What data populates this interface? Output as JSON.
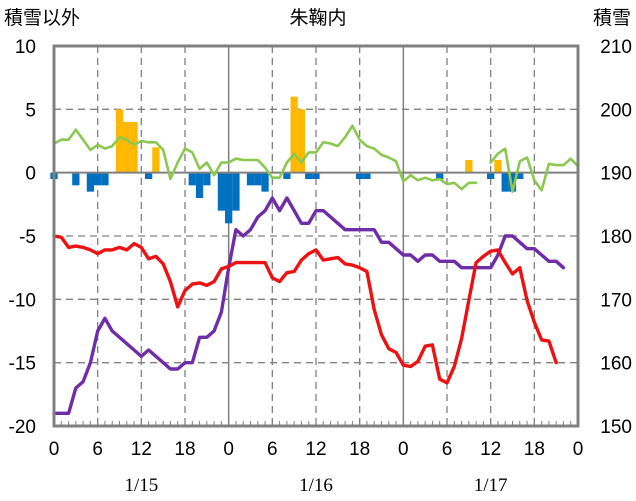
{
  "chart_data": {
    "type": "bar+line",
    "title": "朱鞠内",
    "ylabel_left": "積雪以外",
    "ylabel_right": "積雪",
    "ylim_left": [
      -20,
      10
    ],
    "ylim_right": [
      150,
      210
    ],
    "yticks_left": [
      "10",
      "5",
      "0",
      "-5",
      "-10",
      "-15",
      "-20"
    ],
    "yticks_right": [
      "210",
      "200",
      "190",
      "180",
      "170",
      "160",
      "150"
    ],
    "x_hours": [
      0,
      72
    ],
    "xticks": [
      "0",
      "6",
      "12",
      "18",
      "0",
      "6",
      "12",
      "18",
      "0",
      "6",
      "12",
      "18",
      "0"
    ],
    "dates": [
      "1/15",
      "1/16",
      "1/17"
    ],
    "grid": true,
    "colors": {
      "temperature": "#ee1111",
      "wind": "#8cc850",
      "snow_depth": "#6f2da8",
      "precipitation": "#ffb800",
      "snow_change": "#0070c0"
    },
    "series": [
      {
        "key": "precipitation",
        "type": "bar",
        "axis": "left",
        "values": [
          [
            9,
            5
          ],
          [
            10,
            4
          ],
          [
            11,
            4
          ],
          [
            14,
            2
          ],
          [
            33,
            6
          ],
          [
            34,
            5
          ],
          [
            57,
            1
          ],
          [
            61,
            1
          ]
        ]
      },
      {
        "key": "snow_change",
        "type": "bar",
        "axis": "left",
        "values": [
          [
            0,
            -0.5
          ],
          [
            3,
            -1
          ],
          [
            5,
            -1.5
          ],
          [
            6,
            -1
          ],
          [
            7,
            -1
          ],
          [
            13,
            -0.5
          ],
          [
            19,
            -1
          ],
          [
            20,
            -2
          ],
          [
            21,
            -1
          ],
          [
            23,
            -3
          ],
          [
            24,
            -4
          ],
          [
            25,
            -3
          ],
          [
            27,
            -1
          ],
          [
            28,
            -1
          ],
          [
            29,
            -1.5
          ],
          [
            32,
            -0.5
          ],
          [
            35,
            -0.5
          ],
          [
            36,
            -0.5
          ],
          [
            42,
            -0.5
          ],
          [
            43,
            -0.5
          ],
          [
            53,
            -0.5
          ],
          [
            60,
            -0.5
          ],
          [
            62,
            -1.5
          ],
          [
            63,
            -1.5
          ],
          [
            64,
            -0.5
          ]
        ]
      },
      {
        "key": "wind",
        "type": "line",
        "axis": "left",
        "segments": [
          [
            [
              0,
              2.3
            ],
            [
              1,
              2.6
            ],
            [
              2,
              2.6
            ],
            [
              3,
              3.4
            ],
            [
              4,
              2.6
            ],
            [
              5,
              1.8
            ],
            [
              6,
              2.2
            ],
            [
              7,
              1.9
            ],
            [
              8,
              2.1
            ],
            [
              9,
              2.8
            ],
            [
              10,
              2.6
            ],
            [
              11,
              2.2
            ],
            [
              12,
              2.5
            ],
            [
              13,
              2.4
            ],
            [
              14,
              2.4
            ],
            [
              15,
              1.8
            ],
            [
              16,
              -0.5
            ],
            [
              17,
              0.8
            ],
            [
              18,
              1.9
            ],
            [
              19,
              1.6
            ],
            [
              20,
              0.3
            ],
            [
              21,
              0.8
            ],
            [
              22,
              -0.2
            ],
            [
              23,
              0.8
            ],
            [
              24,
              0.8
            ],
            [
              25,
              1.1
            ],
            [
              26,
              1.0
            ],
            [
              27,
              1.0
            ],
            [
              28,
              1.0
            ],
            [
              29,
              0.4
            ],
            [
              30,
              -0.4
            ],
            [
              31,
              -0.4
            ],
            [
              32,
              0.8
            ],
            [
              33,
              1.5
            ],
            [
              34,
              0.8
            ],
            [
              35,
              1.6
            ],
            [
              36,
              1.6
            ],
            [
              37,
              2.4
            ],
            [
              38,
              2.3
            ],
            [
              39,
              2.1
            ],
            [
              40,
              2.8
            ],
            [
              41,
              3.7
            ],
            [
              42,
              2.6
            ],
            [
              43,
              2.1
            ],
            [
              44,
              1.9
            ],
            [
              45,
              1.4
            ],
            [
              46,
              1.2
            ],
            [
              47,
              0.9
            ],
            [
              48,
              -0.7
            ],
            [
              49,
              -0.2
            ],
            [
              50,
              -0.6
            ],
            [
              51,
              -0.4
            ],
            [
              52,
              -0.6
            ],
            [
              53,
              -0.5
            ],
            [
              54,
              -0.9
            ],
            [
              55,
              -0.8
            ],
            [
              56,
              -1.3
            ],
            [
              57,
              -0.8
            ],
            [
              58,
              -0.8
            ]
          ],
          [
            [
              60,
              0.8
            ],
            [
              61,
              1.5
            ],
            [
              62,
              1.9
            ],
            [
              63,
              -1.5
            ],
            [
              64,
              0.9
            ],
            [
              65,
              1.2
            ],
            [
              66,
              -0.6
            ],
            [
              67,
              -1.4
            ],
            [
              68,
              0.7
            ],
            [
              69,
              0.6
            ],
            [
              70,
              0.6
            ],
            [
              71,
              1.1
            ],
            [
              72,
              0.5
            ]
          ]
        ]
      },
      {
        "key": "temperature",
        "type": "line",
        "axis": "left",
        "points": [
          [
            0,
            -5.0
          ],
          [
            1,
            -5.1
          ],
          [
            2,
            -5.9
          ],
          [
            3,
            -5.8
          ],
          [
            4,
            -5.9
          ],
          [
            5,
            -6.1
          ],
          [
            6,
            -6.4
          ],
          [
            7,
            -6.1
          ],
          [
            8,
            -6.1
          ],
          [
            9,
            -5.9
          ],
          [
            10,
            -6.1
          ],
          [
            11,
            -5.6
          ],
          [
            12,
            -5.9
          ],
          [
            13,
            -6.8
          ],
          [
            14,
            -6.6
          ],
          [
            15,
            -7.2
          ],
          [
            16,
            -8.6
          ],
          [
            17,
            -10.6
          ],
          [
            18,
            -9.3
          ],
          [
            19,
            -8.8
          ],
          [
            20,
            -8.7
          ],
          [
            21,
            -8.9
          ],
          [
            22,
            -8.6
          ],
          [
            23,
            -7.6
          ],
          [
            24,
            -7.4
          ],
          [
            25,
            -7.1
          ],
          [
            26,
            -7.1
          ],
          [
            27,
            -7.1
          ],
          [
            28,
            -7.1
          ],
          [
            29,
            -7.1
          ],
          [
            30,
            -8.3
          ],
          [
            31,
            -8.6
          ],
          [
            32,
            -7.9
          ],
          [
            33,
            -7.8
          ],
          [
            34,
            -6.9
          ],
          [
            35,
            -6.4
          ],
          [
            36,
            -6.1
          ],
          [
            37,
            -6.9
          ],
          [
            38,
            -6.8
          ],
          [
            39,
            -6.7
          ],
          [
            40,
            -7.2
          ],
          [
            41,
            -7.3
          ],
          [
            42,
            -7.5
          ],
          [
            43,
            -7.8
          ],
          [
            44,
            -10.8
          ],
          [
            45,
            -12.8
          ],
          [
            46,
            -13.9
          ],
          [
            47,
            -14.2
          ],
          [
            48,
            -15.2
          ],
          [
            49,
            -15.3
          ],
          [
            50,
            -14.9
          ],
          [
            51,
            -13.7
          ],
          [
            52,
            -13.6
          ],
          [
            53,
            -16.3
          ],
          [
            54,
            -16.6
          ],
          [
            55,
            -15.3
          ],
          [
            56,
            -13.1
          ],
          [
            57,
            -10.1
          ],
          [
            58,
            -7.1
          ],
          [
            59,
            -6.6
          ],
          [
            60,
            -6.2
          ],
          [
            61,
            -6.1
          ],
          [
            62,
            -7.1
          ],
          [
            63,
            -8.0
          ],
          [
            64,
            -7.5
          ],
          [
            65,
            -10.1
          ],
          [
            66,
            -11.8
          ],
          [
            67,
            -13.2
          ],
          [
            68,
            -13.3
          ],
          [
            69,
            -15.0
          ]
        ]
      },
      {
        "key": "snow_depth",
        "type": "line",
        "axis": "right",
        "points": [
          [
            0,
            152
          ],
          [
            1,
            152
          ],
          [
            2,
            152
          ],
          [
            3,
            156
          ],
          [
            4,
            157
          ],
          [
            5,
            160
          ],
          [
            6,
            165
          ],
          [
            7,
            167
          ],
          [
            8,
            165
          ],
          [
            9,
            164
          ],
          [
            10,
            163
          ],
          [
            11,
            162
          ],
          [
            12,
            161
          ],
          [
            13,
            162
          ],
          [
            14,
            161
          ],
          [
            15,
            160
          ],
          [
            16,
            159
          ],
          [
            17,
            159
          ],
          [
            18,
            160
          ],
          [
            19,
            160
          ],
          [
            20,
            164
          ],
          [
            21,
            164
          ],
          [
            22,
            165
          ],
          [
            23,
            168
          ],
          [
            24,
            175
          ],
          [
            25,
            181
          ],
          [
            26,
            180
          ],
          [
            27,
            181
          ],
          [
            28,
            183
          ],
          [
            29,
            184
          ],
          [
            30,
            186
          ],
          [
            31,
            184
          ],
          [
            32,
            186
          ],
          [
            33,
            184
          ],
          [
            34,
            182
          ],
          [
            35,
            182
          ],
          [
            36,
            184
          ],
          [
            37,
            184
          ],
          [
            38,
            183
          ],
          [
            39,
            182
          ],
          [
            40,
            181
          ],
          [
            41,
            181
          ],
          [
            42,
            181
          ],
          [
            43,
            181
          ],
          [
            44,
            181
          ],
          [
            45,
            179
          ],
          [
            46,
            179
          ],
          [
            47,
            178
          ],
          [
            48,
            177
          ],
          [
            49,
            177
          ],
          [
            50,
            176
          ],
          [
            51,
            177
          ],
          [
            52,
            177
          ],
          [
            53,
            176
          ],
          [
            54,
            176
          ],
          [
            55,
            176
          ],
          [
            56,
            175
          ],
          [
            57,
            175
          ],
          [
            58,
            175
          ],
          [
            59,
            175
          ],
          [
            60,
            175
          ],
          [
            61,
            177
          ],
          [
            62,
            180
          ],
          [
            63,
            180
          ],
          [
            64,
            179
          ],
          [
            65,
            178
          ],
          [
            66,
            178
          ],
          [
            67,
            177
          ],
          [
            68,
            176
          ],
          [
            69,
            176
          ],
          [
            70,
            175
          ]
        ]
      }
    ]
  }
}
